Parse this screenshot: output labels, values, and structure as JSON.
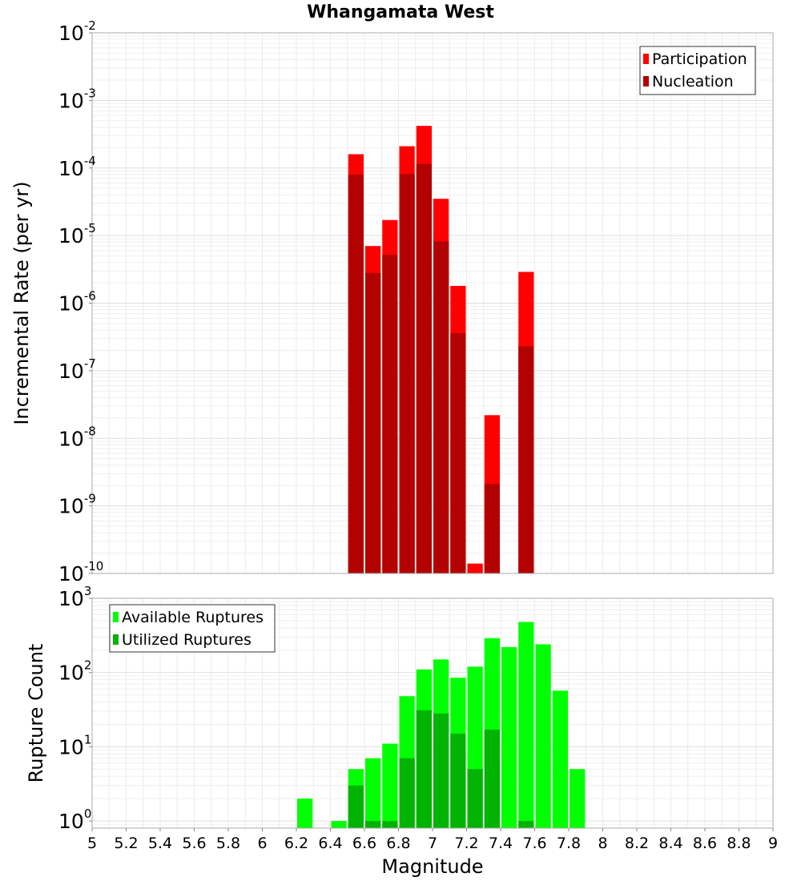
{
  "chart_data": [
    {
      "type": "bar",
      "title": "Whangamata West",
      "ylabel": "Incremental Rate (per yr)",
      "xlabel": "",
      "yscale": "log",
      "xlim": [
        5,
        9
      ],
      "ylim": [
        1e-10,
        0.01
      ],
      "y_tick_exponents": [
        -10,
        -9,
        -8,
        -7,
        -6,
        -5,
        -4,
        -3,
        -2
      ],
      "grid": true,
      "legend_position": "top-right",
      "bar_width": 0.1,
      "series": [
        {
          "name": "Participation",
          "color": "#ff0000",
          "x": [
            6.55,
            6.65,
            6.75,
            6.85,
            6.95,
            7.05,
            7.15,
            7.25,
            7.35,
            7.55
          ],
          "values": [
            0.00016,
            7e-06,
            1.7e-05,
            0.00021,
            0.00042,
            3.5e-05,
            1.8e-06,
            1.4e-10,
            2.2e-08,
            2.9e-06
          ]
        },
        {
          "name": "Nucleation",
          "color": "#b30000",
          "x": [
            6.55,
            6.65,
            6.75,
            6.85,
            6.95,
            7.05,
            7.15,
            7.35,
            7.55
          ],
          "values": [
            8e-05,
            2.8e-06,
            5.2e-06,
            8.1e-05,
            0.000115,
            8.2e-06,
            3.6e-07,
            2.1e-09,
            2.3e-07
          ]
        }
      ]
    },
    {
      "type": "bar",
      "title": "",
      "ylabel": "Rupture Count",
      "xlabel": "Magnitude",
      "yscale": "log",
      "xlim": [
        5,
        9
      ],
      "ylim": [
        0.8,
        1000
      ],
      "y_tick_exponents": [
        0,
        1,
        2,
        3
      ],
      "x_ticks": [
        "5",
        "5.2",
        "5.4",
        "5.6",
        "5.8",
        "6",
        "6.2",
        "6.4",
        "6.6",
        "6.8",
        "7",
        "7.2",
        "7.4",
        "7.6",
        "7.8",
        "8",
        "8.2",
        "8.4",
        "8.6",
        "8.8",
        "9"
      ],
      "grid": true,
      "legend_position": "top-left",
      "bar_width": 0.1,
      "series": [
        {
          "name": "Available Ruptures",
          "color": "#00ff00",
          "x": [
            6.25,
            6.45,
            6.55,
            6.65,
            6.75,
            6.85,
            6.95,
            7.05,
            7.15,
            7.25,
            7.35,
            7.45,
            7.55,
            7.65,
            7.75,
            7.85
          ],
          "values": [
            2,
            1,
            5,
            7,
            11,
            48,
            110,
            150,
            85,
            120,
            290,
            220,
            480,
            240,
            57,
            5
          ]
        },
        {
          "name": "Utilized Ruptures",
          "color": "#00b300",
          "x": [
            6.55,
            6.65,
            6.75,
            6.85,
            6.95,
            7.05,
            7.15,
            7.25,
            7.35,
            7.55
          ],
          "values": [
            3,
            1,
            1,
            7,
            31,
            28,
            15,
            5,
            17,
            1
          ]
        }
      ]
    }
  ]
}
